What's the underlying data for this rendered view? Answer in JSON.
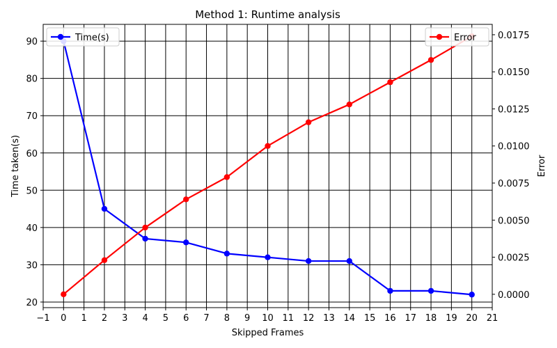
{
  "chart_data": {
    "type": "line",
    "title": "Method 1: Runtime analysis",
    "xlabel": "Skipped Frames",
    "ylabel_left": "Time taken(s)",
    "ylabel_right": "Error",
    "xlim": [
      -1,
      21
    ],
    "ylim_left": [
      18.5,
      94.5
    ],
    "ylim_right": [
      -0.0009,
      0.0182
    ],
    "x_ticks": [
      -1,
      0,
      1,
      2,
      3,
      4,
      5,
      6,
      7,
      8,
      9,
      10,
      11,
      12,
      13,
      14,
      15,
      16,
      17,
      18,
      19,
      20,
      21
    ],
    "y_ticks_left": [
      20,
      30,
      40,
      50,
      60,
      70,
      80,
      90
    ],
    "y_ticks_right": [
      "0.0000",
      "0.0025",
      "0.0050",
      "0.0075",
      "0.0100",
      "0.0125",
      "0.0150",
      "0.0175"
    ],
    "grid": true,
    "x": [
      0,
      2,
      4,
      6,
      8,
      10,
      12,
      14,
      16,
      18,
      20
    ],
    "series": [
      {
        "name": "Time(s)",
        "axis": "left",
        "color": "#0000ff",
        "values": [
          90,
          45,
          37,
          36,
          33,
          32,
          31,
          31,
          23,
          23,
          22
        ],
        "legend": "top-left"
      },
      {
        "name": "Error",
        "axis": "right",
        "color": "#ff0000",
        "values": [
          0.0,
          0.0023,
          0.0045,
          0.0064,
          0.0079,
          0.01,
          0.0116,
          0.0128,
          0.0143,
          0.0158,
          0.0174
        ],
        "legend": "top-right"
      }
    ]
  }
}
